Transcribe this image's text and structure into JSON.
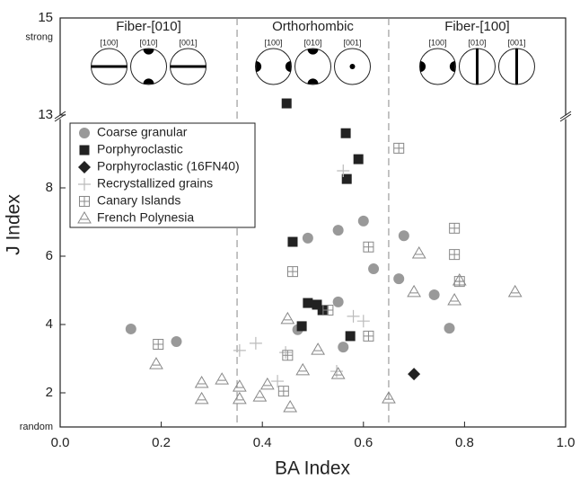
{
  "chart_data": {
    "type": "scatter",
    "xlabel": "BA Index",
    "ylabel": "J Index",
    "xlim": [
      0,
      1
    ],
    "xticks": [
      {
        "value": 0,
        "label": "0.0"
      },
      0.2,
      0.4,
      0.6,
      0.8,
      {
        "value": 1,
        "label": "1.0"
      }
    ],
    "ylim": [
      1,
      15
    ],
    "ybreak": [
      10,
      13
    ],
    "yticks": [
      {
        "value": 1,
        "label": "random"
      },
      2,
      4,
      6,
      8,
      13,
      15,
      {
        "value": 14.6,
        "label": "strong"
      }
    ],
    "vlines": [
      0.35,
      0.65
    ],
    "regions": [
      {
        "label": "Fiber-[010]",
        "poles": [
          "[100]",
          "[010]",
          "[001]"
        ]
      },
      {
        "label": "Orthorhombic",
        "poles": [
          "[100]",
          "[010]",
          "[001]"
        ]
      },
      {
        "label": "Fiber-[100]",
        "poles": [
          "[100]",
          "[010]",
          "[001]"
        ]
      }
    ],
    "series": [
      {
        "name": "Coarse granular",
        "marker": "circle",
        "color": "#999999",
        "x": [
          0.14,
          0.23,
          0.49,
          0.47,
          0.55,
          0.6,
          0.62,
          0.55,
          0.56,
          0.67,
          0.68,
          0.74,
          0.77
        ],
        "values": [
          3.87,
          3.5,
          6.53,
          3.85,
          6.76,
          7.03,
          5.63,
          4.66,
          3.34,
          5.34,
          6.6,
          4.87,
          3.89
        ]
      },
      {
        "name": "Porphyroclastic",
        "marker": "square",
        "color": "#222222",
        "x": [
          0.448,
          0.565,
          0.59,
          0.567,
          0.46,
          0.478,
          0.49,
          0.508,
          0.519,
          0.574
        ],
        "values": [
          13.24,
          9.6,
          8.84,
          8.26,
          6.42,
          3.95,
          4.63,
          4.58,
          4.42,
          3.66
        ]
      },
      {
        "name": "Porphyroclastic (16FN40)",
        "marker": "diamond",
        "color": "#222222",
        "x": [
          0.7
        ],
        "values": [
          2.55
        ]
      },
      {
        "name": "Recrystallized grains",
        "marker": "plus",
        "color": "#bbbbbb",
        "x": [
          0.355,
          0.387,
          0.43,
          0.446,
          0.547,
          0.58,
          0.6,
          0.56
        ],
        "values": [
          3.24,
          3.45,
          2.34,
          3.18,
          2.63,
          4.24,
          4.1,
          8.5
        ]
      },
      {
        "name": "Canary Islands",
        "marker": "boxplus",
        "color": "#888888",
        "x": [
          0.194,
          0.46,
          0.442,
          0.45,
          0.53,
          0.61,
          0.61,
          0.67,
          0.78,
          0.78,
          0.79
        ],
        "values": [
          3.42,
          5.55,
          2.05,
          3.1,
          4.42,
          6.27,
          3.66,
          9.16,
          6.82,
          6.05,
          5.26
        ]
      },
      {
        "name": "French Polynesia",
        "marker": "triangle",
        "color": "#888888",
        "x": [
          0.19,
          0.28,
          0.28,
          0.32,
          0.355,
          0.355,
          0.395,
          0.41,
          0.45,
          0.455,
          0.48,
          0.51,
          0.55,
          0.65,
          0.71,
          0.7,
          0.78,
          0.79,
          0.9
        ],
        "values": [
          2.84,
          2.29,
          1.82,
          2.39,
          2.18,
          1.82,
          1.89,
          2.24,
          4.16,
          1.58,
          2.66,
          3.26,
          2.55,
          1.84,
          6.08,
          4.95,
          4.71,
          5.29,
          4.95
        ]
      }
    ]
  }
}
